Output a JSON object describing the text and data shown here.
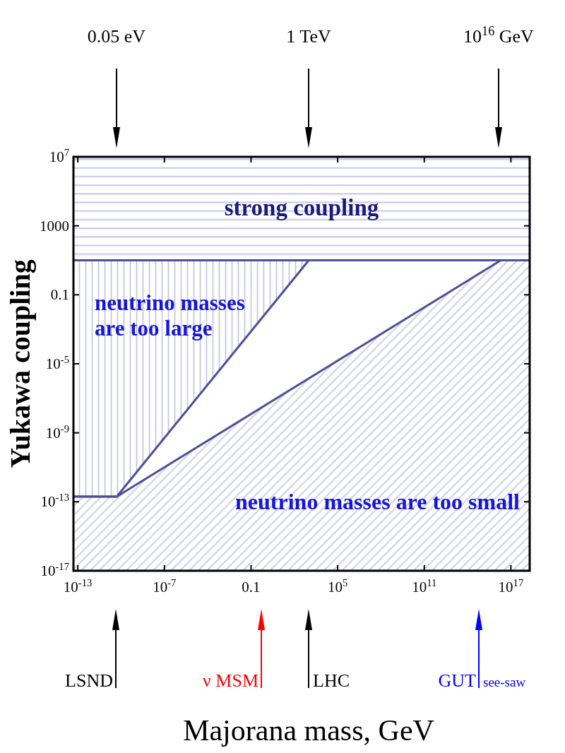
{
  "chart_data": {
    "type": "area",
    "xlabel": "Majorana mass, GeV",
    "ylabel": "Yukawa coupling",
    "log": "xy",
    "xlim": [
      5e-14,
      2e+18
    ],
    "ylim": [
      1e-17,
      10000000.0
    ],
    "xticks": [
      {
        "value": 1e-13,
        "label": "10$^{-13}$"
      },
      {
        "value": 1e-07,
        "label": "10$^{-7}$"
      },
      0.1,
      {
        "value": 100000.0,
        "label": "10$^{5}$"
      },
      {
        "value": 100000000000.0,
        "label": "10$^{11}$"
      },
      {
        "value": 1e+17,
        "label": "10$^{17}$"
      }
    ],
    "yticks": [
      {
        "value": 1e-17,
        "label": "10$^{-17}$"
      },
      {
        "value": 1e-13,
        "label": "10$^{-13}$"
      },
      {
        "value": 1e-09,
        "label": "10$^{-9}$"
      },
      {
        "value": 1e-05,
        "label": "10$^{-5}$"
      },
      0.1,
      1000,
      {
        "value": 10000000.0,
        "label": "10$^{7}$"
      }
    ],
    "bands": [
      {
        "axis": "y",
        "from": 10,
        "to": 10000000.0,
        "label": "strong coupling",
        "color": "#c4c4f6"
      }
    ],
    "ref_lines": [
      {
        "axis": "y",
        "value": 10,
        "color": "#4b4f9b"
      }
    ],
    "series": [
      {
        "name": "neutrino masses are too large",
        "color": "#4b4f9b",
        "x": [
          5e-14,
          5e-11,
          1000,
          5e-14
        ],
        "values": [
          2e-13,
          2e-13,
          10,
          10
        ]
      },
      {
        "name": "neutrino masses are too small",
        "color": "#4b4f9b",
        "x": [
          5e-14,
          5e-11,
          2e+16,
          2e+18
        ],
        "values": [
          2e-13,
          2e-13,
          10,
          10
        ]
      }
    ],
    "annotations": [
      "0.05 eV",
      "1 TeV",
      "10$^{16}$ GeV",
      "LSND",
      "ν MSM",
      "LHC",
      "GUT",
      "see-saw"
    ]
  }
}
